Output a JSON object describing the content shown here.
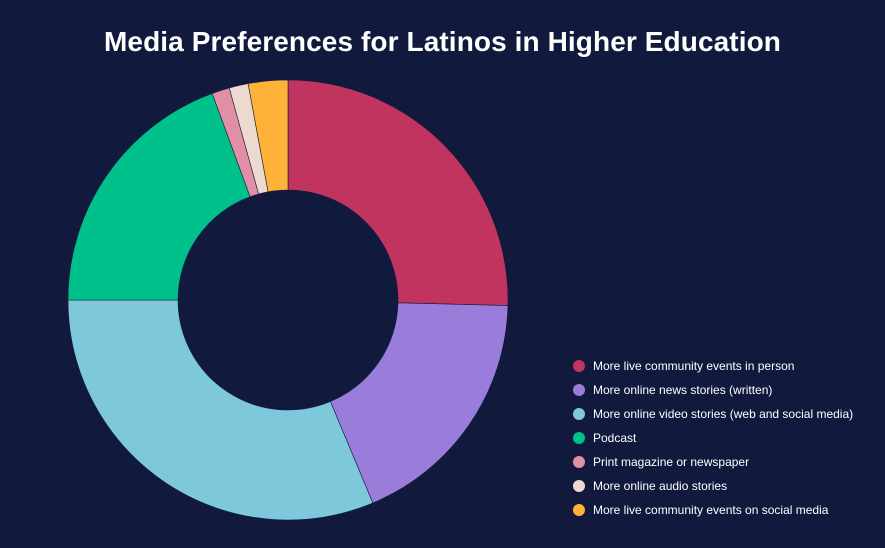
{
  "chart_data": {
    "type": "pie",
    "title": "Media Preferences for Latinos in Higher Education",
    "donut": true,
    "legend_position": "bottom-right",
    "categories": [
      "More live community events in person",
      "More online news stories (written)",
      "More online video stories (web and social media)",
      "Podcast",
      "Print magazine or newspaper",
      "More online audio stories",
      "More live community events on social media"
    ],
    "values": [
      25.4,
      18.3,
      31.3,
      19.4,
      1.3,
      1.4,
      2.9
    ],
    "colors": [
      "#c0345f",
      "#9a7cdb",
      "#7ec8dc",
      "#00c08b",
      "#e08fa5",
      "#ecd9cf",
      "#ffb238"
    ]
  }
}
